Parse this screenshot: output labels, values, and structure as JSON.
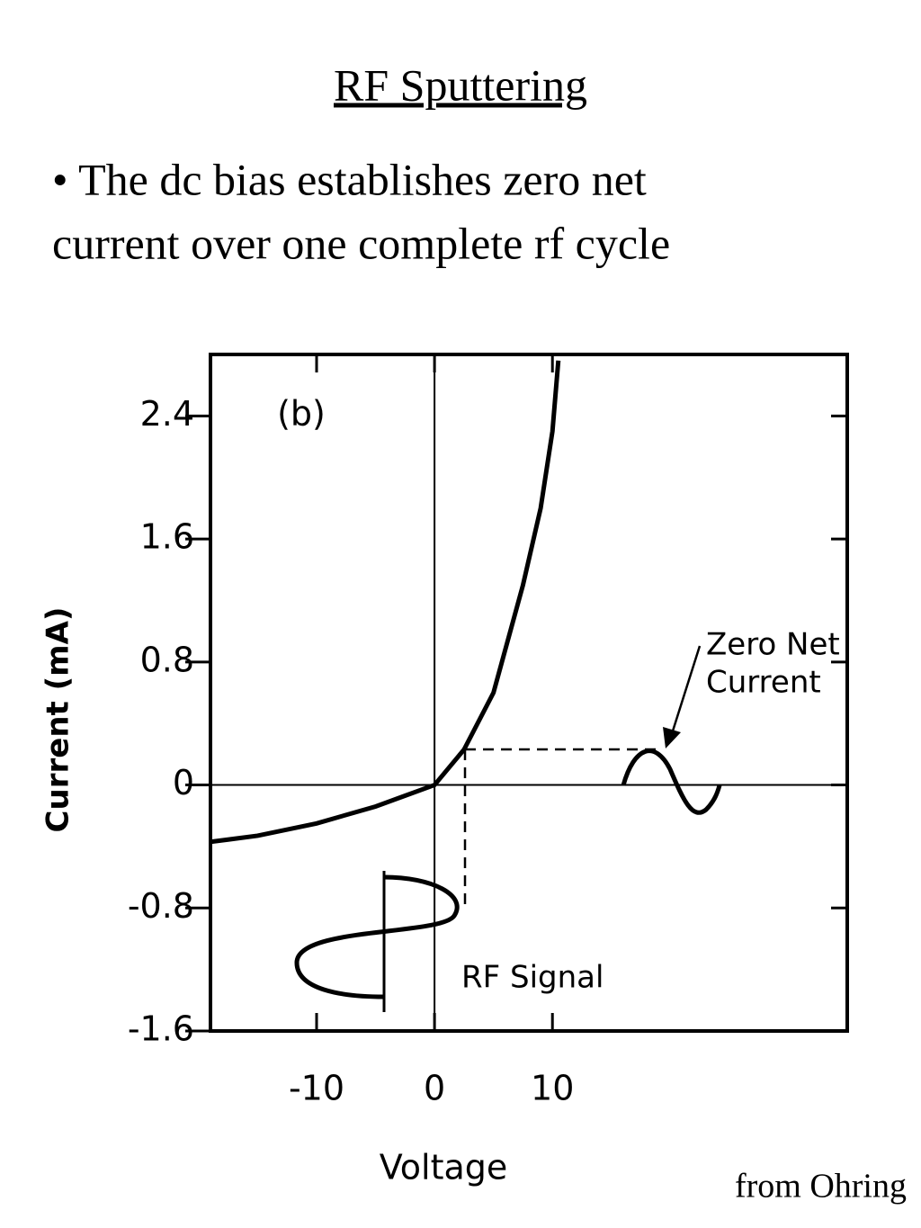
{
  "header": {
    "title": "RF Sputtering"
  },
  "bullet": {
    "lines": [
      "• The dc bias establishes zero net",
      "current over one complete rf cycle"
    ]
  },
  "source": "from Ohring",
  "chart_data": {
    "type": "line",
    "panel_label": "(b)",
    "x_label": "Voltage",
    "y_label": "Current (mA)",
    "x": [
      -19,
      -15,
      -10,
      -5,
      -2.5,
      0,
      2.5,
      5,
      7.5,
      9,
      10,
      10.5
    ],
    "values": [
      -0.37,
      -0.33,
      -0.25,
      -0.14,
      -0.07,
      0,
      0.23,
      0.6,
      1.3,
      1.8,
      2.3,
      2.76
    ],
    "color": "#000000",
    "xlim": [
      -19,
      35
    ],
    "ylim": [
      -1.6,
      2.8
    ],
    "xticks": [
      -10,
      0,
      10
    ],
    "yticks": [
      -1.6,
      -0.8,
      0,
      0.8,
      1.6,
      2.4
    ],
    "annotations": [
      "Zero Net",
      "Current",
      "RF Signal"
    ]
  }
}
